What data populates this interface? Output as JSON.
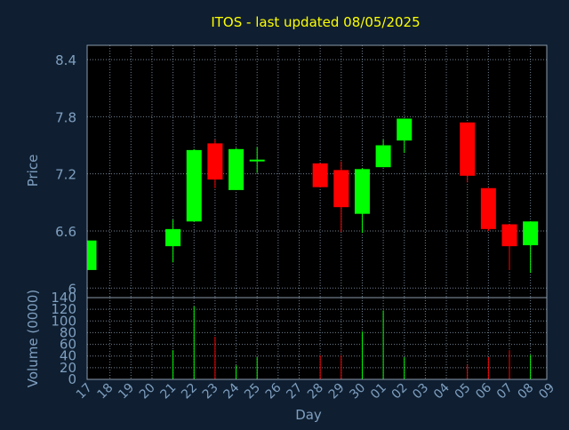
{
  "chart_data": {
    "type": "candlestick",
    "title": "ITOS - last updated 08/05/2025",
    "xlabel": "Day",
    "x_ticks": [
      "17",
      "18",
      "19",
      "20",
      "21",
      "22",
      "23",
      "24",
      "25",
      "26",
      "27",
      "28",
      "29",
      "30",
      "01",
      "02",
      "03",
      "04",
      "05",
      "06",
      "07",
      "08",
      "09"
    ],
    "price": {
      "ylabel": "Price",
      "y_ticks": [
        "8.4",
        "7.8",
        "7.2",
        "6.6",
        "6"
      ],
      "ylim": [
        5.9,
        8.55
      ],
      "candles": [
        {
          "day": "17",
          "open": 6.19,
          "high": 6.5,
          "low": 6.19,
          "close": 6.5
        },
        {
          "day": "21",
          "open": 6.44,
          "high": 6.72,
          "low": 6.27,
          "close": 6.62
        },
        {
          "day": "22",
          "open": 6.7,
          "high": 7.46,
          "low": 6.7,
          "close": 7.45
        },
        {
          "day": "23",
          "open": 7.52,
          "high": 7.56,
          "low": 7.05,
          "close": 7.14
        },
        {
          "day": "24",
          "open": 7.03,
          "high": 7.47,
          "low": 7.03,
          "close": 7.46
        },
        {
          "day": "25",
          "open": 7.33,
          "high": 7.48,
          "low": 7.21,
          "close": 7.34
        },
        {
          "day": "28",
          "open": 7.31,
          "high": 7.31,
          "low": 7.06,
          "close": 7.06
        },
        {
          "day": "29",
          "open": 7.24,
          "high": 7.33,
          "low": 6.59,
          "close": 6.85
        },
        {
          "day": "30",
          "open": 6.78,
          "high": 7.26,
          "low": 6.58,
          "close": 7.25
        },
        {
          "day": "01",
          "open": 7.27,
          "high": 7.56,
          "low": 7.27,
          "close": 7.5
        },
        {
          "day": "02",
          "open": 7.55,
          "high": 7.78,
          "low": 7.42,
          "close": 7.78
        },
        {
          "day": "05",
          "open": 7.74,
          "high": 7.74,
          "low": 7.11,
          "close": 7.18
        },
        {
          "day": "06",
          "open": 7.05,
          "high": 7.05,
          "low": 6.6,
          "close": 6.62
        },
        {
          "day": "07",
          "open": 6.67,
          "high": 6.67,
          "low": 6.19,
          "close": 6.44
        },
        {
          "day": "08",
          "open": 6.45,
          "high": 6.7,
          "low": 6.16,
          "close": 6.7
        }
      ]
    },
    "volume": {
      "ylabel": "Volume (0000)",
      "y_ticks": [
        "140",
        "120",
        "100",
        "80",
        "60",
        "40",
        "20",
        "0"
      ],
      "ylim": [
        0,
        140
      ],
      "bars": [
        {
          "day": "21",
          "value": 50,
          "direction": "up"
        },
        {
          "day": "22",
          "value": 125,
          "direction": "up"
        },
        {
          "day": "23",
          "value": 73,
          "direction": "down"
        },
        {
          "day": "24",
          "value": 24,
          "direction": "up"
        },
        {
          "day": "25",
          "value": 38,
          "direction": "up"
        },
        {
          "day": "28",
          "value": 41,
          "direction": "down"
        },
        {
          "day": "29",
          "value": 41,
          "direction": "down"
        },
        {
          "day": "30",
          "value": 82,
          "direction": "up"
        },
        {
          "day": "01",
          "value": 118,
          "direction": "up"
        },
        {
          "day": "02",
          "value": 38,
          "direction": "up"
        },
        {
          "day": "05",
          "value": 25,
          "direction": "down"
        },
        {
          "day": "06",
          "value": 38,
          "direction": "down"
        },
        {
          "day": "07",
          "value": 50,
          "direction": "down"
        },
        {
          "day": "08",
          "value": 42,
          "direction": "up"
        }
      ]
    },
    "grid": true,
    "colors": {
      "background": "#0f1f31",
      "plot_background": "#000000",
      "up": "#00ff00",
      "down": "#ff0000",
      "title": "#ffff00",
      "axis_text": "#7f9fc0",
      "grid": "#6f7f8f",
      "frame": "#8a9aaa"
    }
  }
}
